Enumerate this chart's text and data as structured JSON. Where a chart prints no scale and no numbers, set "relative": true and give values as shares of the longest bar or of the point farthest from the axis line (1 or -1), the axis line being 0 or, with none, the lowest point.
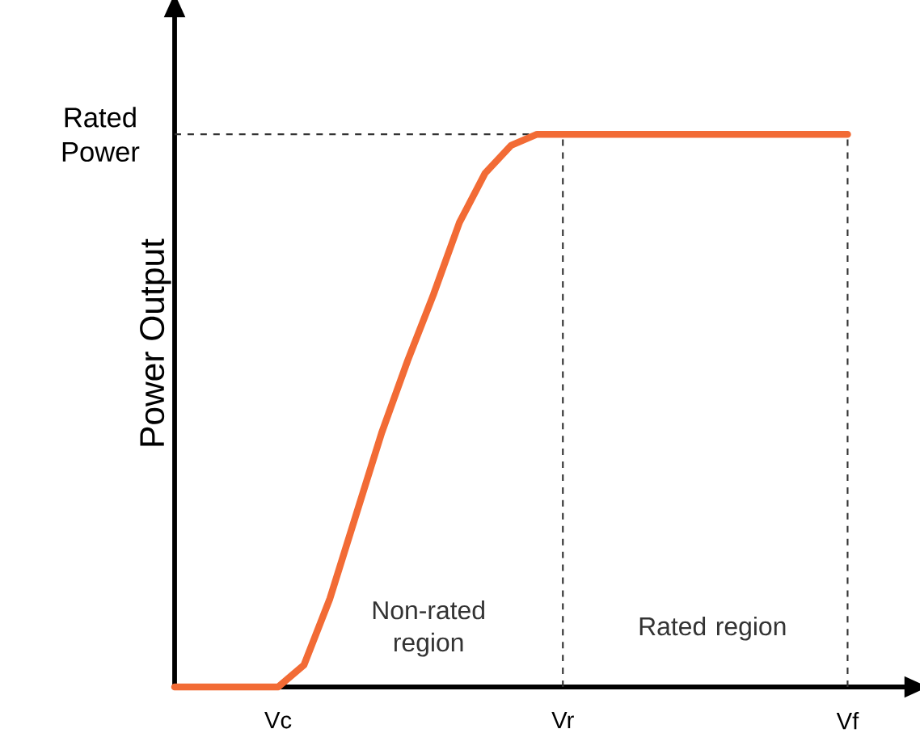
{
  "chart_data": {
    "type": "line",
    "relative": true,
    "ylabel": "Power Output",
    "categories": [
      null,
      null,
      null,
      null,
      "Vc",
      null,
      null,
      null,
      null,
      null,
      null,
      null,
      null,
      null,
      null,
      "Vr",
      null,
      null,
      null,
      null,
      null,
      null,
      null,
      null,
      null,
      null,
      "Vf"
    ],
    "series": [
      {
        "color": "#f26b35",
        "values": [
          0,
          0,
          0,
          0,
          0,
          0.04,
          0.16,
          0.31,
          0.46,
          0.59,
          0.71,
          0.84,
          0.93,
          0.98,
          1,
          1,
          1,
          1,
          1,
          1,
          1,
          1,
          1,
          1,
          1,
          1,
          1
        ]
      }
    ],
    "ref_lines": [
      {
        "axis": "y",
        "value": 1,
        "label": "Rated Power",
        "line_style": "dashed"
      },
      {
        "axis": "x",
        "value": "Vr",
        "line_style": "dashed"
      },
      {
        "axis": "x",
        "value": "Vf",
        "line_style": "dashed"
      }
    ],
    "annotations": [
      "Non-rated region",
      "Rated region"
    ],
    "grid": false,
    "marker": "none",
    "line_style": "solid"
  }
}
